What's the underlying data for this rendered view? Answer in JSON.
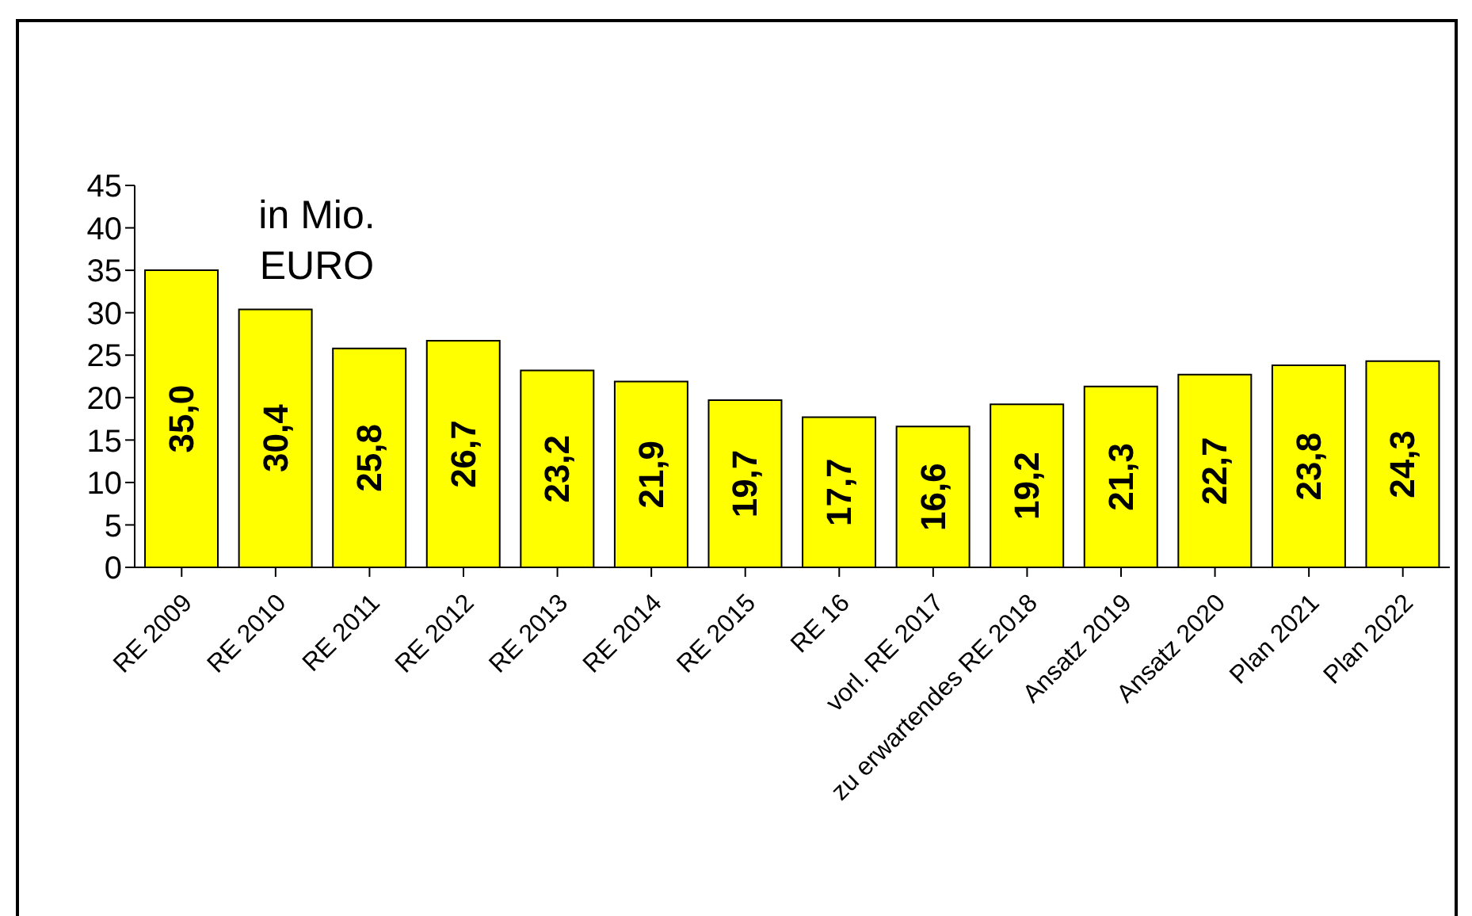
{
  "chart_data": {
    "type": "bar",
    "categories": [
      "RE 2009",
      "RE 2010",
      "RE 2011",
      "RE 2012",
      "RE 2013",
      "RE 2014",
      "RE 2015",
      "RE 16",
      "vorl. RE 2017",
      "zu erwartendes RE 2018",
      "Ansatz 2019",
      "Ansatz 2020",
      "Plan 2021",
      "Plan 2022"
    ],
    "values": [
      35.0,
      30.4,
      25.8,
      26.7,
      23.2,
      21.9,
      19.7,
      17.7,
      16.6,
      19.2,
      21.3,
      22.7,
      23.8,
      24.3
    ],
    "value_labels": [
      "35,0",
      "30,4",
      "25,8",
      "26,7",
      "23,2",
      "21,9",
      "19,7",
      "17,7",
      "16,6",
      "19,2",
      "21,3",
      "22,7",
      "23,8",
      "24,3"
    ],
    "color": "#ffff00",
    "ylim": [
      0,
      45
    ],
    "yticks": [
      0,
      5,
      10,
      15,
      20,
      25,
      30,
      35,
      40,
      45
    ],
    "annotations": [
      "in Mio. EURO"
    ]
  }
}
